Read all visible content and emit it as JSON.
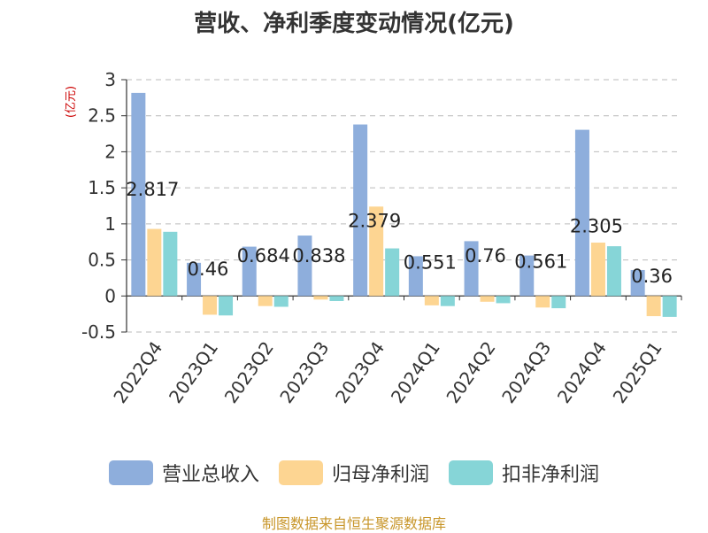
{
  "chart_data": {
    "type": "bar",
    "title": "营收、净利季度变动情况(亿元)",
    "ylabel": "(亿元)",
    "categories": [
      "2022Q4",
      "2023Q1",
      "2023Q2",
      "2023Q3",
      "2023Q4",
      "2024Q1",
      "2024Q2",
      "2024Q3",
      "2024Q4",
      "2025Q1"
    ],
    "ylim": [
      -0.5,
      3
    ],
    "yticks": [
      "3",
      "2.5",
      "2",
      "1.5",
      "1",
      "0.5",
      "0",
      "-0.5"
    ],
    "grid": true,
    "legend_position": "bottom",
    "series": [
      {
        "name": "营业总收入",
        "color": "#8eaedc",
        "values": [
          2.817,
          0.46,
          0.684,
          0.838,
          2.379,
          0.551,
          0.76,
          0.561,
          2.305,
          0.36
        ],
        "labels": [
          "2.817",
          "0.46",
          "0.684",
          "0.838",
          "2.379",
          "0.551",
          "0.76",
          "0.561",
          "2.305",
          "0.36"
        ]
      },
      {
        "name": "归母净利润",
        "color": "#fdd592",
        "values": [
          0.93,
          -0.26,
          -0.14,
          -0.05,
          1.24,
          -0.13,
          -0.08,
          -0.16,
          0.74,
          -0.28
        ]
      },
      {
        "name": "扣非净利润",
        "color": "#86d5d7",
        "values": [
          0.89,
          -0.27,
          -0.15,
          -0.07,
          0.66,
          -0.14,
          -0.1,
          -0.17,
          0.69,
          -0.29
        ]
      }
    ]
  },
  "source": "制图数据来自恒生聚源数据库"
}
